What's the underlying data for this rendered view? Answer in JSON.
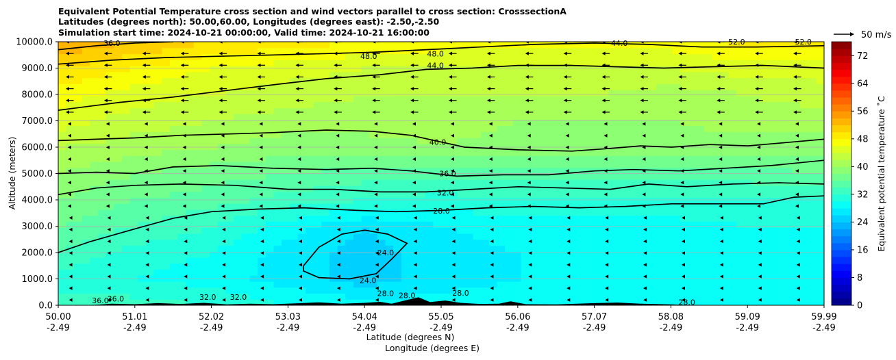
{
  "chart_data": {
    "type": "contour",
    "title_lines": [
      "Equivalent Potential Temperature cross section and wind vectors parallel to cross section: CrosssectionA",
      "Latitudes (degrees north): 50.00,60.00, Longitudes (degrees east): -2.50,-2.50",
      "Simulation start time: 2024-10-21 00:00:00, Valid time: 2024-10-21 16:00:00"
    ],
    "ylabel": "Altitude (meters)",
    "xlabel_lines": [
      "Latitude (degrees N)",
      "Longitude (degrees E)"
    ],
    "ylim": [
      0,
      10000
    ],
    "xlim": [
      50.0,
      59.99
    ],
    "y_ticks": [
      0,
      1000,
      2000,
      3000,
      4000,
      5000,
      6000,
      7000,
      8000,
      9000,
      10000
    ],
    "y_tick_labels": [
      "0.0",
      "1000.0",
      "2000.0",
      "3000.0",
      "4000.0",
      "5000.0",
      "6000.0",
      "7000.0",
      "8000.0",
      "9000.0",
      "10000.0"
    ],
    "x_ticks": [
      {
        "lat": "50.00",
        "lon": "-2.49"
      },
      {
        "lat": "51.01",
        "lon": "-2.49"
      },
      {
        "lat": "52.02",
        "lon": "-2.49"
      },
      {
        "lat": "53.03",
        "lon": "-2.49"
      },
      {
        "lat": "54.04",
        "lon": "-2.49"
      },
      {
        "lat": "55.05",
        "lon": "-2.49"
      },
      {
        "lat": "56.06",
        "lon": "-2.49"
      },
      {
        "lat": "57.07",
        "lon": "-2.49"
      },
      {
        "lat": "58.08",
        "lon": "-2.49"
      },
      {
        "lat": "59.09",
        "lon": "-2.49"
      },
      {
        "lat": "59.99",
        "lon": "-2.49"
      }
    ],
    "grid": "horizontal",
    "colorbar": {
      "label": "Equivalent potential temperature ˚C",
      "min": 0,
      "max": 76,
      "step": 2,
      "tick_values": [
        0,
        8,
        16,
        24,
        32,
        40,
        48,
        56,
        64,
        72
      ],
      "tick_labels": [
        "0",
        "8",
        "16",
        "24",
        "32",
        "40",
        "48",
        "56",
        "64",
        "72"
      ]
    },
    "quiver_key": {
      "label": "50 m/s",
      "speed_ms": 50
    },
    "wind_vectors": {
      "direction": "southward (toward lower latitude)",
      "upper_levels_speed_ms": 20,
      "mid_levels_speed_ms": 10,
      "low_levels_speed_ms": 4
    },
    "contour_levels": [
      24,
      28,
      32,
      36,
      40,
      44,
      48,
      52
    ],
    "contour_labels": [
      {
        "text": "36.0",
        "lat": 50.7,
        "alt": 9950
      },
      {
        "text": "48.0",
        "lat": 54.05,
        "alt": 9450
      },
      {
        "text": "48.0",
        "lat": 54.92,
        "alt": 9550
      },
      {
        "text": "44.0",
        "lat": 54.92,
        "alt": 9100
      },
      {
        "text": "44.0",
        "lat": 57.32,
        "alt": 9950
      },
      {
        "text": "52.0",
        "lat": 58.85,
        "alt": 10000
      },
      {
        "text": "52.0",
        "lat": 59.72,
        "alt": 10000
      },
      {
        "text": "40.0",
        "lat": 54.95,
        "alt": 6200
      },
      {
        "text": "36.0",
        "lat": 55.08,
        "alt": 5000
      },
      {
        "text": "32.0",
        "lat": 55.05,
        "alt": 4270
      },
      {
        "text": "28.0",
        "lat": 55.0,
        "alt": 3580
      },
      {
        "text": "24.0",
        "lat": 54.27,
        "alt": 2000
      },
      {
        "text": "24.0",
        "lat": 54.04,
        "alt": 950
      },
      {
        "text": "28.0",
        "lat": 58.2,
        "alt": 120
      },
      {
        "text": "36.0",
        "lat": 50.55,
        "alt": 180
      },
      {
        "text": "36.0",
        "lat": 50.75,
        "alt": 250
      },
      {
        "text": "32.0",
        "lat": 51.95,
        "alt": 310
      },
      {
        "text": "32.0",
        "lat": 52.35,
        "alt": 310
      },
      {
        "text": "28.0",
        "lat": 54.27,
        "alt": 450
      },
      {
        "text": "28.0",
        "lat": 54.55,
        "alt": 380
      },
      {
        "text": "28.0",
        "lat": 55.25,
        "alt": 470
      }
    ],
    "field_samples_note": "Equivalent potential temperature (°C) field, lat 50-60 N, altitude 0-10000 m",
    "field_rows_alt": [
      0,
      1000,
      2000,
      3000,
      4000,
      5000,
      6000,
      7000,
      8000,
      9000,
      10000
    ],
    "field_cols_lat": [
      50.0,
      51.0,
      52.0,
      53.0,
      54.0,
      55.0,
      56.0,
      57.0,
      58.0,
      59.0,
      60.0
    ],
    "field_values": [
      [
        33,
        33,
        32,
        30,
        29,
        29,
        29,
        29,
        28,
        29,
        29
      ],
      [
        31,
        30,
        29,
        27,
        25,
        27,
        28,
        28,
        28,
        28,
        28
      ],
      [
        34,
        31,
        30,
        27,
        25,
        27,
        28,
        29,
        29,
        28,
        29
      ],
      [
        36,
        34,
        32,
        29,
        26,
        28,
        29,
        29,
        29,
        30,
        30
      ],
      [
        38,
        36,
        35,
        33,
        32,
        31,
        32,
        32,
        32,
        32,
        32
      ],
      [
        40,
        38,
        37,
        36,
        35,
        35,
        35,
        35,
        35,
        35,
        36
      ],
      [
        42,
        41,
        40,
        39,
        39,
        40,
        39,
        39,
        39,
        39,
        39
      ],
      [
        45,
        43,
        42,
        41,
        41,
        41,
        40,
        40,
        40,
        41,
        41
      ],
      [
        47,
        45,
        44,
        43,
        42,
        42,
        42,
        42,
        41,
        42,
        43
      ],
      [
        50,
        48,
        46,
        45,
        44,
        44,
        44,
        44,
        44,
        45,
        45
      ],
      [
        54,
        52,
        50,
        49,
        48,
        47,
        47,
        47,
        47,
        49,
        49
      ]
    ],
    "contour_paths": [
      {
        "level": 24,
        "points": [
          [
            53.2,
            1500
          ],
          [
            53.4,
            2200
          ],
          [
            53.7,
            2700
          ],
          [
            54.0,
            2850
          ],
          [
            54.3,
            2700
          ],
          [
            54.55,
            2350
          ],
          [
            54.45,
            2050
          ],
          [
            54.35,
            1750
          ],
          [
            54.15,
            1200
          ],
          [
            53.8,
            1000
          ],
          [
            53.4,
            1050
          ],
          [
            53.2,
            1300
          ],
          [
            53.2,
            1500
          ]
        ]
      },
      {
        "level": 28,
        "points": [
          [
            50.0,
            2000
          ],
          [
            50.4,
            2400
          ],
          [
            51.0,
            2900
          ],
          [
            51.5,
            3300
          ],
          [
            52.0,
            3550
          ],
          [
            52.6,
            3650
          ],
          [
            53.2,
            3700
          ],
          [
            53.9,
            3600
          ],
          [
            54.4,
            3550
          ],
          [
            55.0,
            3600
          ],
          [
            55.6,
            3700
          ],
          [
            56.2,
            3750
          ],
          [
            56.8,
            3700
          ],
          [
            57.4,
            3750
          ],
          [
            58.0,
            3850
          ],
          [
            58.6,
            3850
          ],
          [
            59.2,
            3850
          ],
          [
            59.6,
            4100
          ],
          [
            59.99,
            4150
          ]
        ]
      },
      {
        "level": 32,
        "points": [
          [
            50.0,
            4200
          ],
          [
            50.5,
            4450
          ],
          [
            51.0,
            4550
          ],
          [
            51.6,
            4600
          ],
          [
            52.3,
            4550
          ],
          [
            53.0,
            4400
          ],
          [
            53.6,
            4400
          ],
          [
            54.2,
            4300
          ],
          [
            54.8,
            4300
          ],
          [
            55.4,
            4400
          ],
          [
            56.0,
            4500
          ],
          [
            56.6,
            4450
          ],
          [
            57.2,
            4400
          ],
          [
            57.7,
            4600
          ],
          [
            58.2,
            4500
          ],
          [
            58.8,
            4600
          ],
          [
            59.4,
            4650
          ],
          [
            59.99,
            4600
          ]
        ]
      },
      {
        "level": 36,
        "points": [
          [
            50.0,
            5000
          ],
          [
            50.5,
            5050
          ],
          [
            51.0,
            5000
          ],
          [
            51.5,
            5250
          ],
          [
            52.1,
            5300
          ],
          [
            52.8,
            5200
          ],
          [
            53.5,
            5150
          ],
          [
            54.1,
            5200
          ],
          [
            54.6,
            5100
          ],
          [
            55.2,
            4900
          ],
          [
            55.8,
            4950
          ],
          [
            56.4,
            4950
          ],
          [
            57.0,
            5100
          ],
          [
            57.5,
            5150
          ],
          [
            58.1,
            5100
          ],
          [
            58.7,
            5200
          ],
          [
            59.3,
            5300
          ],
          [
            59.99,
            5500
          ]
        ]
      },
      {
        "level": 40,
        "points": [
          [
            50.0,
            6250
          ],
          [
            50.5,
            6300
          ],
          [
            51.0,
            6350
          ],
          [
            51.6,
            6450
          ],
          [
            52.2,
            6500
          ],
          [
            52.8,
            6550
          ],
          [
            53.5,
            6650
          ],
          [
            54.1,
            6600
          ],
          [
            54.6,
            6450
          ],
          [
            55.3,
            6000
          ],
          [
            56.0,
            5900
          ],
          [
            56.7,
            5850
          ],
          [
            57.2,
            5950
          ],
          [
            57.6,
            6050
          ],
          [
            58.0,
            6000
          ],
          [
            58.5,
            6100
          ],
          [
            59.0,
            6050
          ],
          [
            59.4,
            6150
          ],
          [
            59.99,
            6300
          ]
        ]
      },
      {
        "level": 44,
        "points": [
          [
            50.0,
            7400
          ],
          [
            50.8,
            7700
          ],
          [
            51.5,
            7900
          ],
          [
            52.2,
            8150
          ],
          [
            52.9,
            8400
          ],
          [
            53.5,
            8600
          ],
          [
            54.2,
            8750
          ],
          [
            54.8,
            8950
          ],
          [
            55.4,
            9000
          ],
          [
            56.0,
            9100
          ],
          [
            56.7,
            9100
          ],
          [
            57.3,
            9050
          ],
          [
            57.9,
            9000
          ],
          [
            58.5,
            9050
          ],
          [
            59.2,
            9100
          ],
          [
            59.99,
            9000
          ]
        ]
      },
      {
        "level": 48,
        "points": [
          [
            50.0,
            9150
          ],
          [
            50.7,
            9300
          ],
          [
            51.4,
            9400
          ],
          [
            52.1,
            9450
          ],
          [
            52.8,
            9500
          ],
          [
            53.5,
            9550
          ],
          [
            54.1,
            9600
          ],
          [
            54.8,
            9700
          ],
          [
            55.5,
            9800
          ],
          [
            56.2,
            9900
          ],
          [
            57.0,
            9950
          ],
          [
            57.7,
            9900
          ],
          [
            58.4,
            9800
          ],
          [
            59.1,
            9800
          ],
          [
            59.99,
            9850
          ]
        ]
      },
      {
        "level": 52,
        "points": [
          [
            50.0,
            9700
          ],
          [
            50.5,
            9850
          ],
          [
            51.0,
            9950
          ],
          [
            51.5,
            10000
          ]
        ]
      }
    ]
  }
}
